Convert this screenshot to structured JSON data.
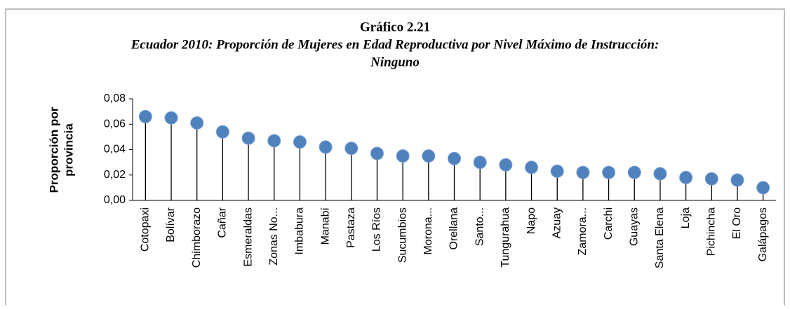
{
  "chart_data": {
    "type": "lollipop",
    "title": "Gráfico 2.21",
    "subtitle": [
      "Ecuador 2010: Proporción de Mujeres en Edad Reproductiva por Nivel Máximo de Instrucción:",
      "Ninguno"
    ],
    "y_label": [
      "Proporción por",
      "provincia"
    ],
    "categories": [
      "Cotopaxi",
      "Bolívar",
      "Chimborazo",
      "Cañar",
      "Esmeraldas",
      "Zonas No...",
      "Imbabura",
      "Manabí",
      "Pastaza",
      "Los Ríos",
      "Sucumbios",
      "Morona...",
      "Orellana",
      "Santo...",
      "Tungurahua",
      "Napo",
      "Azuay",
      "Zamora...",
      "Carchi",
      "Guayas",
      "Santa Elena",
      "Loja",
      "Pichincha",
      "El Oro",
      "Galápagos"
    ],
    "values": [
      0.066,
      0.065,
      0.061,
      0.054,
      0.049,
      0.047,
      0.046,
      0.042,
      0.041,
      0.037,
      0.035,
      0.035,
      0.033,
      0.03,
      0.028,
      0.026,
      0.023,
      0.022,
      0.022,
      0.022,
      0.021,
      0.018,
      0.017,
      0.016,
      0.01
    ],
    "color": "#4f81bd",
    "ylim": [
      0,
      0.08
    ],
    "yticks": [
      {
        "value": 0,
        "label": "0,00"
      },
      {
        "value": 0.02,
        "label": "0,02"
      },
      {
        "value": 0.04,
        "label": "0,04"
      },
      {
        "value": 0.06,
        "label": "0,06"
      },
      {
        "value": 0.08,
        "label": "0,08"
      }
    ]
  }
}
